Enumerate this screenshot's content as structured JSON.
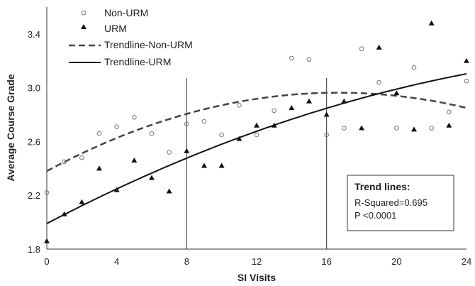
{
  "chart_data": {
    "type": "scatter",
    "xlabel": "SI Visits",
    "ylabel": "Average Course Grade",
    "xlim": [
      0,
      24
    ],
    "ylim": [
      1.8,
      3.6
    ],
    "xticks": [
      0,
      4,
      8,
      12,
      16,
      20,
      24
    ],
    "yticks": [
      1.8,
      2.2,
      2.6,
      3.0,
      3.4
    ],
    "grid": false,
    "legend_position": "top-left",
    "vertical_lines": [
      8,
      16
    ],
    "series": [
      {
        "name": "Non-URM",
        "marker": "open-circle",
        "color": "#777777",
        "points": [
          [
            0,
            2.22
          ],
          [
            1,
            2.45
          ],
          [
            2,
            2.48
          ],
          [
            3,
            2.66
          ],
          [
            4,
            2.71
          ],
          [
            5,
            2.78
          ],
          [
            6,
            2.66
          ],
          [
            7,
            2.52
          ],
          [
            8,
            2.73
          ],
          [
            9,
            2.75
          ],
          [
            10,
            2.65
          ],
          [
            11,
            2.87
          ],
          [
            12,
            2.65
          ],
          [
            13,
            2.83
          ],
          [
            14,
            3.22
          ],
          [
            15,
            3.21
          ],
          [
            16,
            2.65
          ],
          [
            17,
            2.7
          ],
          [
            18,
            3.29
          ],
          [
            19,
            3.04
          ],
          [
            20,
            2.7
          ],
          [
            21,
            3.15
          ],
          [
            22,
            2.7
          ],
          [
            23,
            2.82
          ],
          [
            24,
            3.05
          ]
        ]
      },
      {
        "name": "URM",
        "marker": "filled-triangle",
        "color": "#111111",
        "points": [
          [
            0,
            1.86
          ],
          [
            1,
            2.06
          ],
          [
            2,
            2.15
          ],
          [
            3,
            2.4
          ],
          [
            4,
            2.24
          ],
          [
            5,
            2.46
          ],
          [
            6,
            2.33
          ],
          [
            7,
            2.23
          ],
          [
            8,
            2.53
          ],
          [
            9,
            2.42
          ],
          [
            10,
            2.42
          ],
          [
            11,
            2.62
          ],
          [
            12,
            2.72
          ],
          [
            13,
            2.72
          ],
          [
            14,
            2.85
          ],
          [
            15,
            2.9
          ],
          [
            16,
            2.8
          ],
          [
            17,
            2.9
          ],
          [
            18,
            2.7
          ],
          [
            19,
            3.3
          ],
          [
            20,
            2.96
          ],
          [
            21,
            2.69
          ],
          [
            22,
            3.48
          ],
          [
            23,
            2.72
          ],
          [
            24,
            3.2
          ]
        ]
      }
    ],
    "trendlines": [
      {
        "name": "Trendline-Non-URM",
        "style": "dashed",
        "color": "#444444",
        "quadratic": [
          2.38,
          0.07,
          -0.0021
        ]
      },
      {
        "name": "Trendline-URM",
        "style": "solid",
        "color": "#111111",
        "quadratic": [
          1.99,
          0.068,
          -0.0009
        ]
      }
    ],
    "annotation": {
      "title": "Trend lines:",
      "lines": [
        "R-Squared=0.695",
        "P <0.0001"
      ]
    }
  }
}
